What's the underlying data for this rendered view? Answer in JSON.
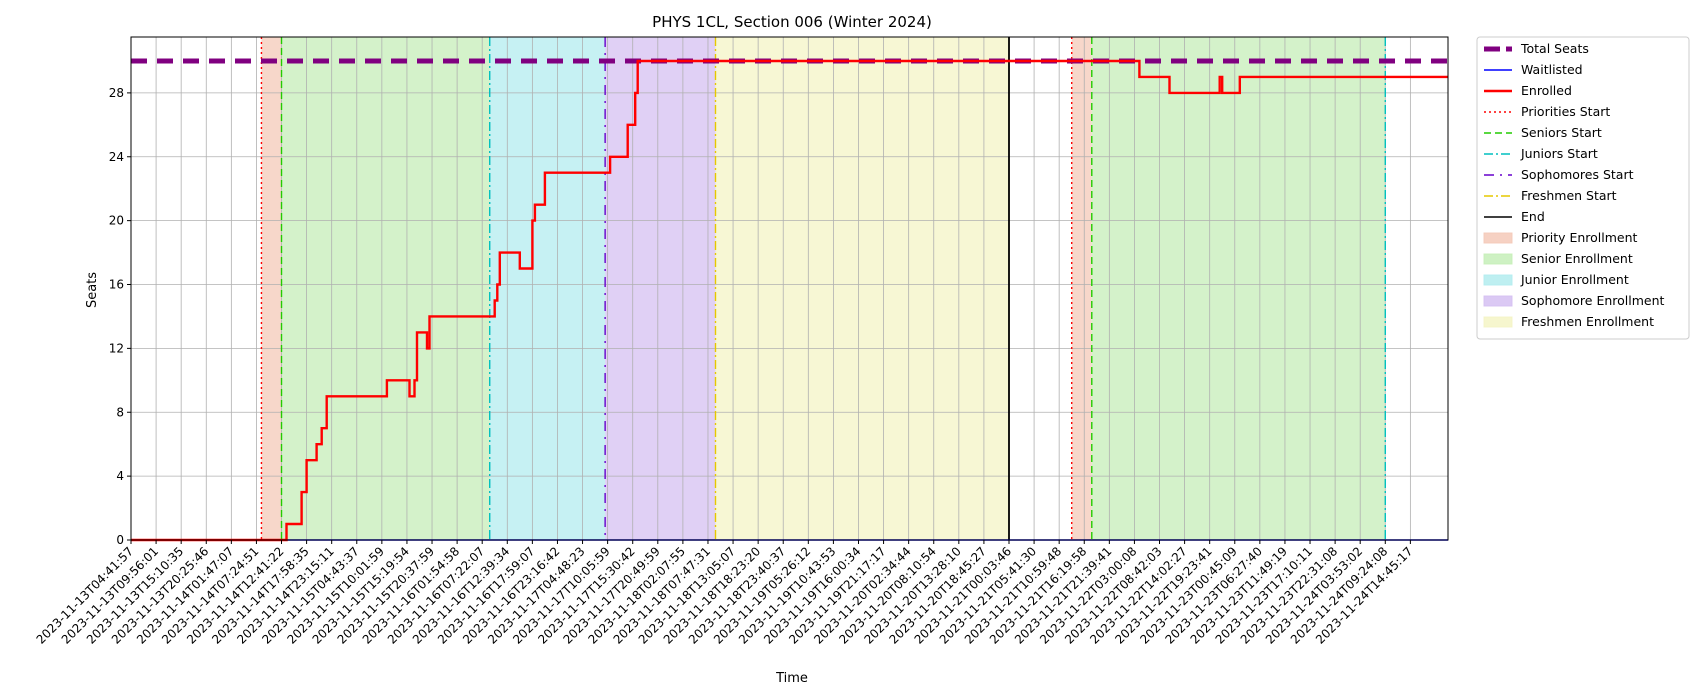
{
  "chart_data": {
    "type": "line",
    "title": "PHYS 1CL, Section 006 (Winter 2024)",
    "xlabel": "Time",
    "ylabel": "Seats",
    "ylim": [
      0,
      31.5
    ],
    "yticks": [
      0,
      4,
      8,
      12,
      16,
      20,
      24,
      28
    ],
    "grid": true,
    "legend_position": "outside-right",
    "x_categories": [
      "2023-11-13T04:41:57",
      "2023-11-13T09:56:01",
      "2023-11-13T15:10:35",
      "2023-11-13T20:25:46",
      "2023-11-14T01:47:07",
      "2023-11-14T07:24:51",
      "2023-11-14T12:41:22",
      "2023-11-14T17:58:35",
      "2023-11-14T23:15:11",
      "2023-11-15T04:43:37",
      "2023-11-15T10:01:59",
      "2023-11-15T15:19:54",
      "2023-11-15T20:37:59",
      "2023-11-16T01:54:58",
      "2023-11-16T07:22:07",
      "2023-11-16T12:39:34",
      "2023-11-16T17:59:07",
      "2023-11-16T23:16:42",
      "2023-11-17T04:48:23",
      "2023-11-17T10:05:59",
      "2023-11-17T15:30:42",
      "2023-11-17T20:49:59",
      "2023-11-18T02:07:55",
      "2023-11-18T07:47:31",
      "2023-11-18T13:05:07",
      "2023-11-18T18:23:20",
      "2023-11-18T23:40:37",
      "2023-11-19T05:26:12",
      "2023-11-19T10:43:53",
      "2023-11-19T16:00:34",
      "2023-11-19T21:17:17",
      "2023-11-20T02:34:44",
      "2023-11-20T08:10:54",
      "2023-11-20T13:28:10",
      "2023-11-20T18:45:27",
      "2023-11-21T00:03:46",
      "2023-11-21T05:41:30",
      "2023-11-21T10:59:48",
      "2023-11-21T16:19:58",
      "2023-11-21T21:39:41",
      "2023-11-22T03:00:08",
      "2023-11-22T08:42:03",
      "2023-11-22T14:02:27",
      "2023-11-22T19:23:41",
      "2023-11-23T00:45:09",
      "2023-11-23T06:27:40",
      "2023-11-23T11:49:19",
      "2023-11-23T17:10:11",
      "2023-11-23T22:31:08",
      "2023-11-24T03:53:02",
      "2023-11-24T09:24:08",
      "2023-11-24T14:45:17"
    ],
    "x_range": [
      0,
      52.5
    ],
    "series": [
      {
        "name": "Total Seats",
        "style": "thick-dashed",
        "color": "#800080",
        "x": [
          0,
          52.5
        ],
        "y": [
          30,
          30
        ]
      },
      {
        "name": "Waitlisted",
        "style": "solid",
        "color": "#0000ff",
        "x": [
          0,
          52.5
        ],
        "y": [
          0,
          0
        ]
      },
      {
        "name": "Enrolled",
        "style": "solid",
        "color": "#ff0000",
        "x": [
          0,
          6.2,
          6.2,
          6.8,
          6.8,
          7.0,
          7.0,
          7.4,
          7.4,
          7.6,
          7.6,
          7.8,
          7.8,
          10.2,
          10.2,
          11.1,
          11.1,
          11.3,
          11.3,
          11.4,
          11.4,
          11.8,
          11.8,
          11.9,
          11.9,
          12.1,
          12.1,
          12.2,
          12.2,
          14.5,
          14.5,
          14.6,
          14.6,
          14.7,
          14.7,
          15.5,
          15.5,
          15.6,
          15.6,
          16.0,
          16.0,
          16.1,
          16.1,
          16.5,
          16.5,
          16.6,
          16.6,
          16.7,
          16.7,
          19.1,
          19.1,
          19.8,
          19.8,
          20.1,
          20.1,
          20.2,
          20.2,
          40.2,
          40.2,
          41.4,
          41.4,
          43.4,
          43.4,
          43.5,
          43.5,
          44.2,
          44.2,
          52.5
        ],
        "y": [
          0,
          0,
          1,
          1,
          3,
          3,
          5,
          5,
          6,
          6,
          7,
          7,
          9,
          9,
          10,
          10,
          9,
          9,
          10,
          10,
          13,
          13,
          12,
          12,
          14,
          14,
          14,
          14,
          14,
          14,
          15,
          15,
          16,
          16,
          18,
          18,
          17,
          17,
          17,
          17,
          20,
          20,
          21,
          21,
          23,
          23,
          23,
          23,
          23,
          23,
          24,
          24,
          26,
          26,
          28,
          28,
          30,
          30,
          29,
          29,
          28,
          28,
          29,
          29,
          28,
          28,
          29,
          29
        ],
        "note_unused": ""
      }
    ],
    "vertical_lines": [
      {
        "name": "Priorities Start",
        "color": "#ff0000",
        "style": "dotted",
        "x": [
          5.2,
          37.5
        ]
      },
      {
        "name": "Seniors Start",
        "color": "#22cc00",
        "style": "dashed",
        "x": [
          6.0,
          38.3
        ]
      },
      {
        "name": "Juniors Start",
        "color": "#00bfbf",
        "style": "dashdot",
        "x": [
          14.3,
          50.0
        ]
      },
      {
        "name": "Sophomores Start",
        "color": "#6600cc",
        "style": "loose-dashdot",
        "x": [
          18.9
        ]
      },
      {
        "name": "Freshmen Start",
        "color": "#e6c800",
        "style": "dashdot",
        "x": [
          23.3
        ]
      },
      {
        "name": "End",
        "color": "#000000",
        "style": "solid",
        "x": [
          35.0
        ]
      }
    ],
    "shaded_regions": [
      {
        "name": "Priority Enrollment",
        "color": "#f4c9b8",
        "ranges": [
          [
            5.2,
            6.0
          ],
          [
            37.5,
            38.3
          ]
        ]
      },
      {
        "name": "Senior Enrollment",
        "color": "#c6eeb8",
        "ranges": [
          [
            6.0,
            14.3
          ],
          [
            38.3,
            50.0
          ]
        ]
      },
      {
        "name": "Junior Enrollment",
        "color": "#b3ecef",
        "ranges": [
          [
            14.3,
            18.9
          ]
        ]
      },
      {
        "name": "Sophomore Enrollment",
        "color": "#d5c0f2",
        "ranges": [
          [
            18.9,
            23.3
          ]
        ]
      },
      {
        "name": "Freshmen Enrollment",
        "color": "#f4f4c6",
        "ranges": [
          [
            23.3,
            35.0
          ]
        ]
      }
    ],
    "legend": [
      {
        "label": "Total Seats",
        "kind": "line",
        "color": "#800080",
        "style": "thick-dashed"
      },
      {
        "label": "Waitlisted",
        "kind": "line",
        "color": "#0000ff",
        "style": "solid"
      },
      {
        "label": "Enrolled",
        "kind": "line",
        "color": "#ff0000",
        "style": "solid-thick"
      },
      {
        "label": "Priorities Start",
        "kind": "line",
        "color": "#ff0000",
        "style": "dotted"
      },
      {
        "label": "Seniors Start",
        "kind": "line",
        "color": "#22cc00",
        "style": "dashed"
      },
      {
        "label": "Juniors Start",
        "kind": "line",
        "color": "#00bfbf",
        "style": "dashdot"
      },
      {
        "label": "Sophomores Start",
        "kind": "line",
        "color": "#6600cc",
        "style": "loose-dashdot"
      },
      {
        "label": "Freshmen Start",
        "kind": "line",
        "color": "#e6c800",
        "style": "dashdot"
      },
      {
        "label": "End",
        "kind": "line",
        "color": "#000000",
        "style": "solid"
      },
      {
        "label": "Priority Enrollment",
        "kind": "patch",
        "color": "#f4c9b8"
      },
      {
        "label": "Senior Enrollment",
        "kind": "patch",
        "color": "#c6eeb8"
      },
      {
        "label": "Junior Enrollment",
        "kind": "patch",
        "color": "#b3ecef"
      },
      {
        "label": "Sophomore Enrollment",
        "kind": "patch",
        "color": "#d5c0f2"
      },
      {
        "label": "Freshmen Enrollment",
        "kind": "patch",
        "color": "#f4f4c6"
      }
    ]
  }
}
